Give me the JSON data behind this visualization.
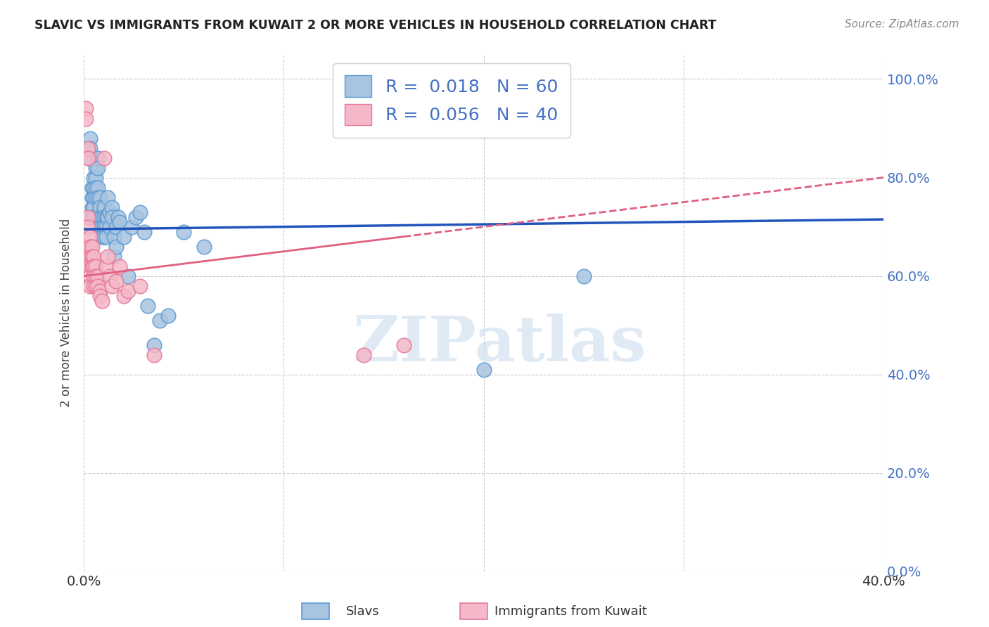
{
  "title": "SLAVIC VS IMMIGRANTS FROM KUWAIT 2 OR MORE VEHICLES IN HOUSEHOLD CORRELATION CHART",
  "source": "Source: ZipAtlas.com",
  "xlabel_slavs": "Slavs",
  "xlabel_kuwait": "Immigrants from Kuwait",
  "ylabel": "2 or more Vehicles in Household",
  "xlim": [
    0.0,
    0.4
  ],
  "ylim": [
    0.0,
    1.05
  ],
  "slavs_color": "#a8c4e0",
  "kuwait_color": "#f4b8c8",
  "slavs_edge": "#5b9bd5",
  "kuwait_edge": "#e8789a",
  "trend_slavs_color": "#2255bb",
  "trend_kuwait_color": "#e06080",
  "R_slavs": 0.018,
  "N_slavs": 60,
  "R_kuwait": 0.056,
  "N_kuwait": 40,
  "slavs_x": [
    0.003,
    0.003,
    0.003,
    0.004,
    0.004,
    0.004,
    0.004,
    0.005,
    0.005,
    0.005,
    0.005,
    0.005,
    0.006,
    0.006,
    0.006,
    0.006,
    0.007,
    0.007,
    0.007,
    0.007,
    0.008,
    0.008,
    0.008,
    0.008,
    0.009,
    0.009,
    0.009,
    0.01,
    0.01,
    0.01,
    0.01,
    0.011,
    0.011,
    0.011,
    0.012,
    0.012,
    0.013,
    0.013,
    0.014,
    0.014,
    0.015,
    0.015,
    0.016,
    0.016,
    0.017,
    0.018,
    0.02,
    0.022,
    0.024,
    0.026,
    0.028,
    0.03,
    0.032,
    0.035,
    0.038,
    0.042,
    0.05,
    0.06,
    0.25,
    0.2
  ],
  "slavs_y": [
    0.88,
    0.86,
    0.84,
    0.78,
    0.76,
    0.74,
    0.72,
    0.8,
    0.78,
    0.76,
    0.74,
    0.72,
    0.82,
    0.8,
    0.78,
    0.76,
    0.84,
    0.82,
    0.78,
    0.76,
    0.76,
    0.74,
    0.72,
    0.7,
    0.72,
    0.7,
    0.68,
    0.74,
    0.72,
    0.7,
    0.68,
    0.72,
    0.7,
    0.68,
    0.76,
    0.72,
    0.73,
    0.7,
    0.74,
    0.72,
    0.68,
    0.64,
    0.7,
    0.66,
    0.72,
    0.71,
    0.68,
    0.6,
    0.7,
    0.72,
    0.73,
    0.69,
    0.54,
    0.46,
    0.51,
    0.52,
    0.69,
    0.66,
    0.6,
    0.41
  ],
  "kuwait_x": [
    0.001,
    0.001,
    0.002,
    0.002,
    0.002,
    0.002,
    0.003,
    0.003,
    0.003,
    0.003,
    0.003,
    0.003,
    0.004,
    0.004,
    0.004,
    0.005,
    0.005,
    0.005,
    0.005,
    0.006,
    0.006,
    0.006,
    0.007,
    0.007,
    0.008,
    0.008,
    0.009,
    0.01,
    0.011,
    0.012,
    0.013,
    0.014,
    0.016,
    0.018,
    0.02,
    0.022,
    0.028,
    0.035,
    0.14,
    0.16
  ],
  "kuwait_y": [
    0.94,
    0.92,
    0.86,
    0.84,
    0.72,
    0.7,
    0.68,
    0.66,
    0.64,
    0.62,
    0.6,
    0.58,
    0.66,
    0.64,
    0.62,
    0.64,
    0.62,
    0.6,
    0.58,
    0.62,
    0.6,
    0.58,
    0.6,
    0.58,
    0.57,
    0.56,
    0.55,
    0.84,
    0.62,
    0.64,
    0.6,
    0.58,
    0.59,
    0.62,
    0.56,
    0.57,
    0.58,
    0.44,
    0.44,
    0.46
  ],
  "background_color": "#ffffff",
  "grid_color": "#cccccc",
  "watermark": "ZIPatlas"
}
